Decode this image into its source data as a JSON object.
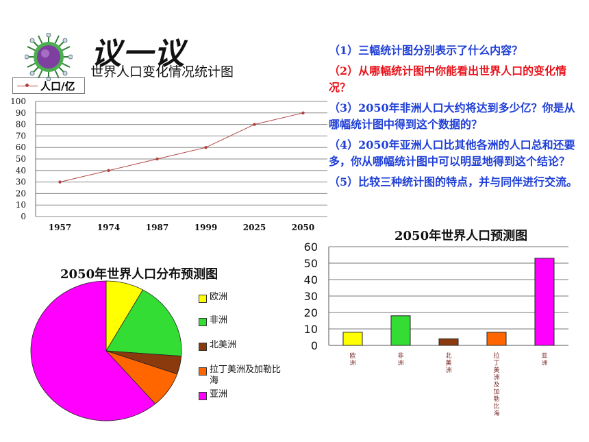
{
  "heading": "议一议",
  "questions": [
    {
      "text": "（1）三幅统计图分别表示了什么内容？",
      "color": "#1f3fd6"
    },
    {
      "text": "（2）从哪幅统计图中你能看出世界人口的变化情况？",
      "color": "#e8131b"
    },
    {
      "text": "（3）2050年非洲人口大约将达到多少亿？你是从哪幅统计图中得到这个数据的？",
      "color": "#1f3fd6"
    },
    {
      "text": "（4）2050年亚洲人口比其他各洲的人口总和还要多，你从哪幅统计图中可以明显地得到这个结论？",
      "color": "#1f3fd6"
    },
    {
      "text": "（5）比较三种统计图的特点，并与同伴进行交流。",
      "color": "#1f3fd6"
    }
  ],
  "chart_data": [
    {
      "type": "line",
      "title": "世界人口变化情况统计图",
      "series": [
        {
          "name": "人口/亿",
          "values": [
            30,
            40,
            50,
            60,
            80,
            90
          ],
          "color": "#b04040"
        }
      ],
      "x": [
        "1957",
        "1974",
        "1987",
        "1999",
        "2025",
        "2050"
      ],
      "yticks": [
        "0",
        "10",
        "20",
        "30",
        "40",
        "50",
        "60",
        "70",
        "80",
        "90",
        "100"
      ],
      "ylim": [
        0,
        100
      ],
      "grid": true,
      "legend": "top-left"
    },
    {
      "type": "pie",
      "title": "2050年世界人口分布预测图",
      "categories": [
        "欧洲",
        "非洲",
        "北美洲",
        "拉丁美洲及加勒比海",
        "亚洲"
      ],
      "values": [
        8.1,
        18.1,
        4.2,
        8.3,
        61.3
      ],
      "colors": [
        "#ffff00",
        "#33dd33",
        "#8b3a0e",
        "#ff6600",
        "#ff00ff"
      ],
      "legend": "right"
    },
    {
      "type": "bar",
      "title": "2050年世界人口预测图",
      "categories": [
        "欧洲",
        "非洲",
        "北美洲",
        "拉丁美洲及加勒比海",
        "亚洲"
      ],
      "values": [
        8,
        18,
        4,
        8,
        53
      ],
      "colors": [
        "#ffff00",
        "#33dd33",
        "#8b3a0e",
        "#ff6600",
        "#ff00ff"
      ],
      "yticks": [
        "0",
        "10",
        "20",
        "30",
        "40",
        "50",
        "60"
      ],
      "ylim": [
        0,
        60
      ],
      "grid": true
    }
  ]
}
